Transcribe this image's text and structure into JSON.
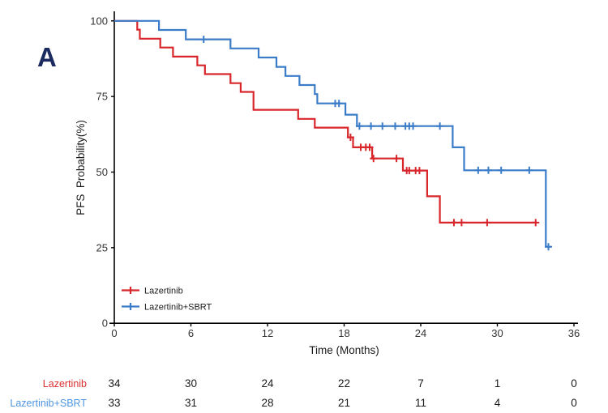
{
  "figure": {
    "panel_label": "A",
    "background_color": "#ffffff"
  },
  "chart_data": {
    "type": "line",
    "subtype": "kaplan-meier-step-survival",
    "title": "",
    "xlabel": "Time (Months)",
    "ylabel": "PFS  Probability(%)",
    "xlim": [
      0,
      36.6
    ],
    "ylim": [
      0,
      100
    ],
    "xticks": [
      0,
      6,
      12,
      18,
      24,
      30,
      36
    ],
    "yticks": [
      0,
      25,
      50,
      75,
      100
    ],
    "grid": false,
    "legend_position": "inside-bottom-left",
    "axis_color": "#000000",
    "tick_label_color": "#333333",
    "series": [
      {
        "name": "Lazertinib",
        "color": "#d8262a",
        "steps": [
          [
            0,
            100
          ],
          [
            1.8,
            97.1
          ],
          [
            2.0,
            94.1
          ],
          [
            3.6,
            91.2
          ],
          [
            4.6,
            88.2
          ],
          [
            6.5,
            85.3
          ],
          [
            7.1,
            82.4
          ],
          [
            9.1,
            79.4
          ],
          [
            9.9,
            76.5
          ],
          [
            10.9,
            70.6
          ],
          [
            14.4,
            67.6
          ],
          [
            15.7,
            64.7
          ],
          [
            18.3,
            61.5
          ],
          [
            18.7,
            58.2
          ],
          [
            20.2,
            54.5
          ],
          [
            22.6,
            50.5
          ],
          [
            24.5,
            42.0
          ],
          [
            25.5,
            33.3
          ],
          [
            33.1,
            33.3
          ]
        ],
        "censors": [
          [
            18.5,
            61.5
          ],
          [
            19.3,
            58.2
          ],
          [
            19.7,
            58.2
          ],
          [
            20.0,
            58.2
          ],
          [
            20.3,
            54.5
          ],
          [
            22.1,
            54.5
          ],
          [
            22.9,
            50.5
          ],
          [
            23.1,
            50.5
          ],
          [
            23.6,
            50.5
          ],
          [
            23.9,
            50.5
          ],
          [
            26.6,
            33.3
          ],
          [
            27.2,
            33.3
          ],
          [
            29.2,
            33.3
          ],
          [
            33.0,
            33.3
          ]
        ]
      },
      {
        "name": "Lazertinib+SBRT",
        "color": "#3b7cc9",
        "steps": [
          [
            0,
            100
          ],
          [
            3.5,
            97.0
          ],
          [
            5.6,
            93.9
          ],
          [
            9.1,
            90.9
          ],
          [
            11.3,
            87.9
          ],
          [
            12.7,
            84.8
          ],
          [
            13.4,
            81.8
          ],
          [
            14.5,
            78.8
          ],
          [
            15.7,
            75.8
          ],
          [
            15.9,
            72.7
          ],
          [
            18.1,
            69.0
          ],
          [
            19.0,
            65.2
          ],
          [
            26.5,
            58.2
          ],
          [
            27.4,
            50.6
          ],
          [
            33.8,
            25.3
          ],
          [
            34.2,
            25.3
          ]
        ],
        "censors": [
          [
            7.0,
            93.9
          ],
          [
            17.3,
            72.7
          ],
          [
            17.6,
            72.7
          ],
          [
            19.2,
            65.2
          ],
          [
            20.1,
            65.2
          ],
          [
            21.0,
            65.2
          ],
          [
            22.0,
            65.2
          ],
          [
            22.8,
            65.2
          ],
          [
            23.1,
            65.2
          ],
          [
            23.4,
            65.2
          ],
          [
            25.5,
            65.2
          ],
          [
            28.5,
            50.6
          ],
          [
            29.3,
            50.6
          ],
          [
            30.3,
            50.6
          ],
          [
            32.5,
            50.6
          ],
          [
            34.0,
            25.3
          ]
        ]
      }
    ],
    "risk_table": {
      "time_points": [
        0,
        6,
        12,
        18,
        24,
        30,
        36
      ],
      "rows": [
        {
          "label": "Lazertinib",
          "label_color": "#dc2f2f",
          "values": [
            34,
            30,
            24,
            22,
            7,
            1,
            0
          ]
        },
        {
          "label": "Lazertinib+SBRT",
          "label_color": "#4e96e0",
          "values": [
            33,
            31,
            28,
            21,
            11,
            4,
            0
          ]
        }
      ],
      "value_color": "#1a1a1a"
    }
  }
}
